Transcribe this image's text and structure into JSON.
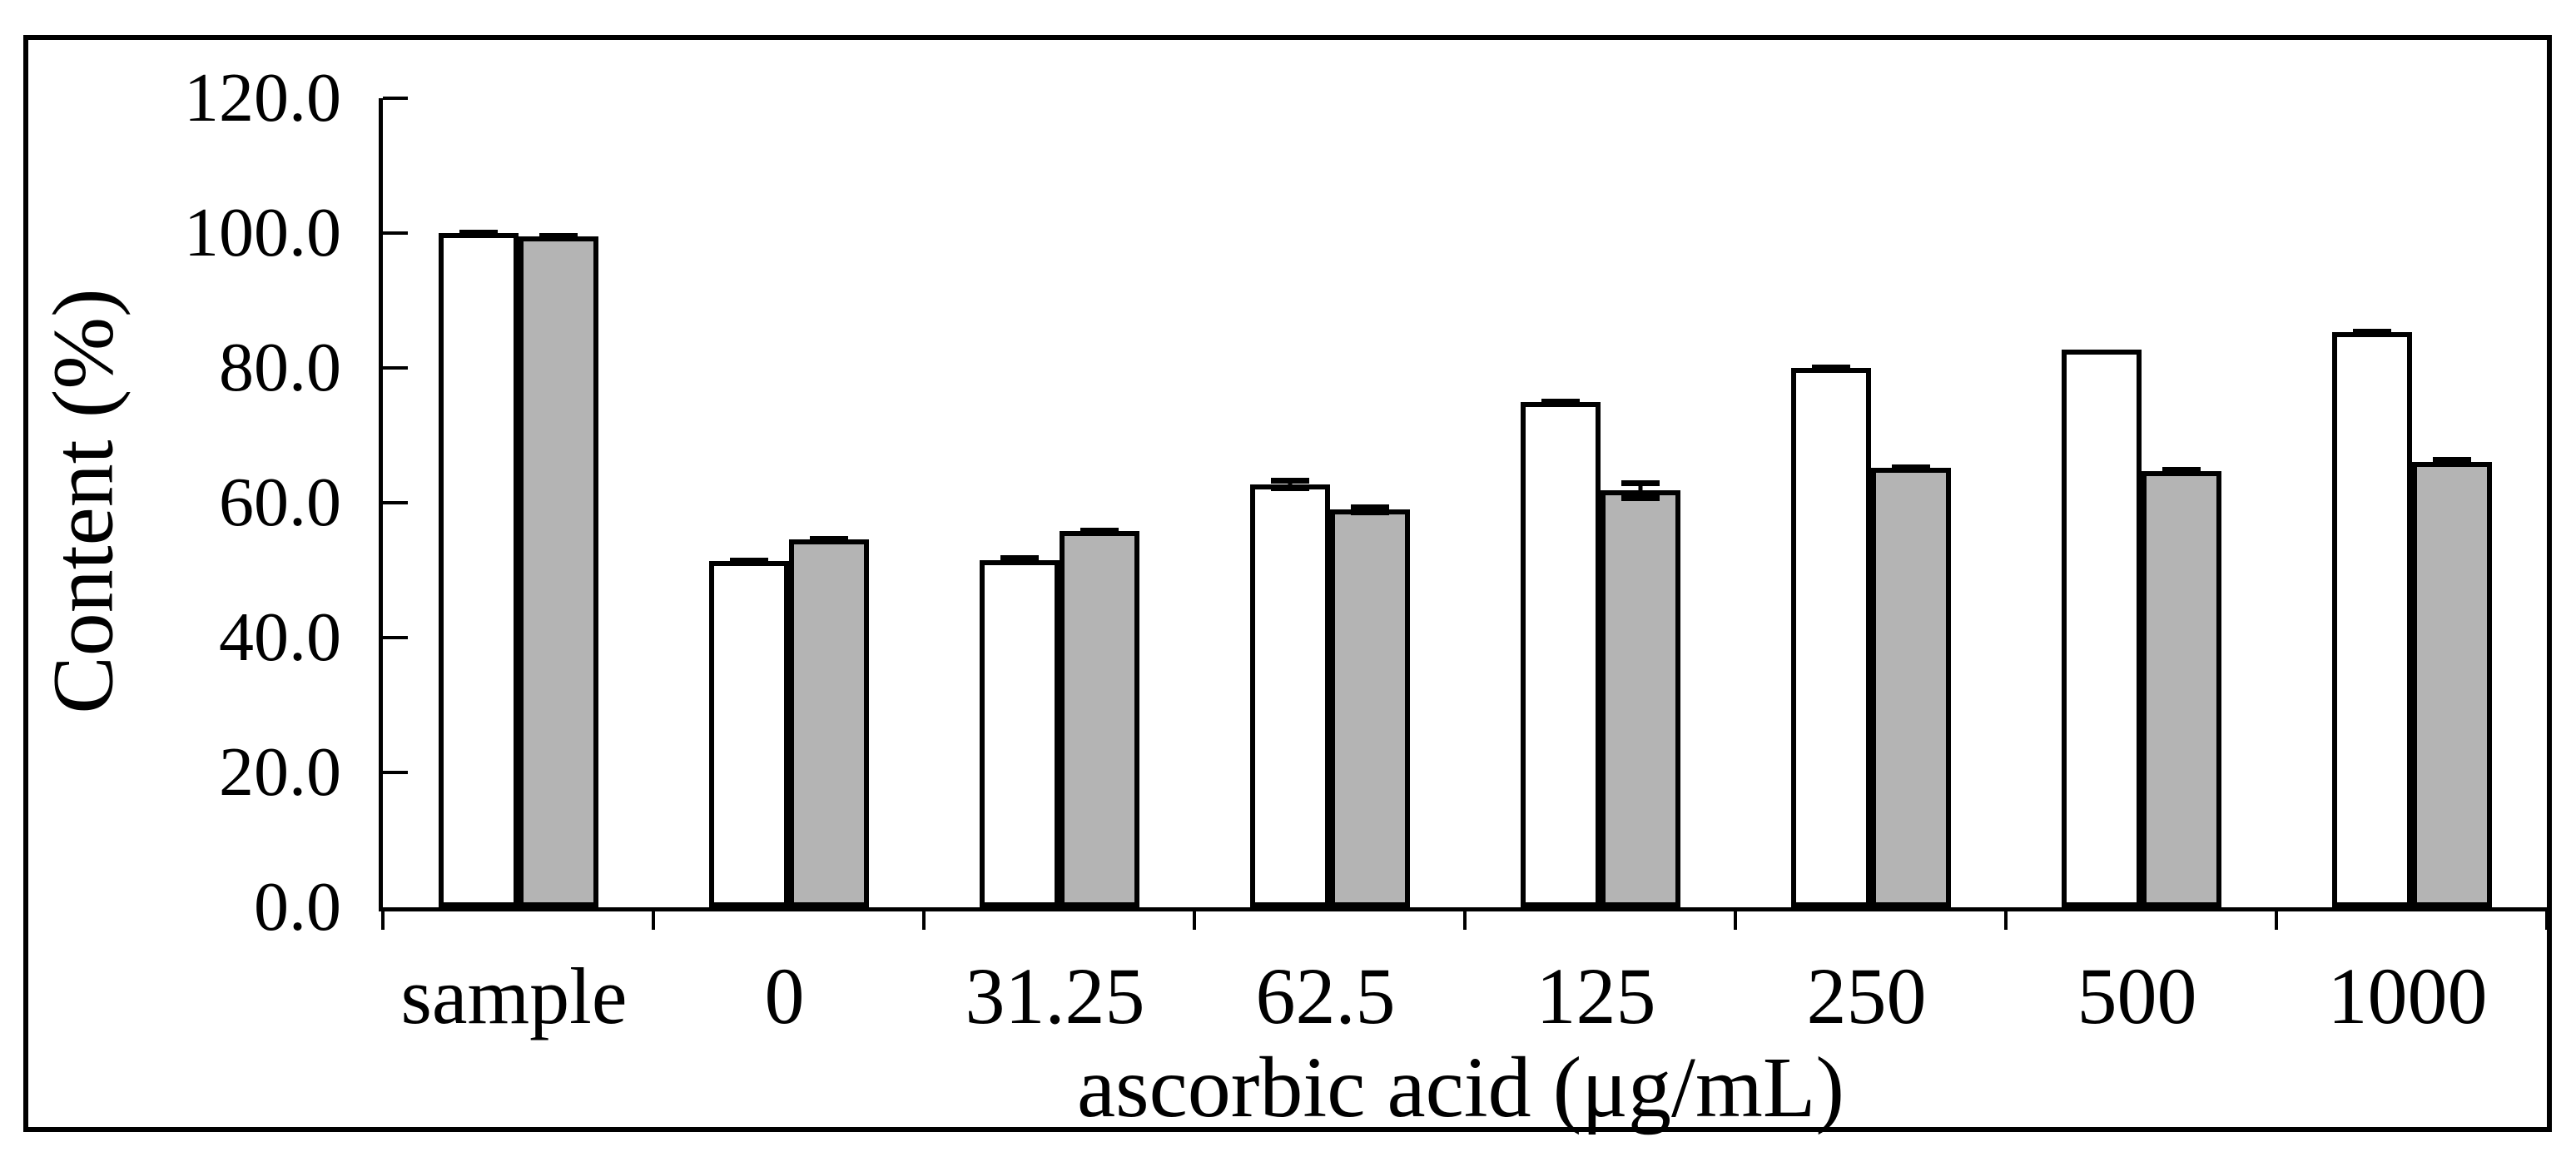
{
  "chart_data": {
    "type": "bar",
    "title": "",
    "categories": [
      "sample",
      "0",
      "31.25",
      "62.5",
      "125",
      "250",
      "500",
      "1000"
    ],
    "series": [
      {
        "name": "white-bars",
        "fill_color": "#ffffff",
        "values": [
          100.0,
          51.4,
          51.5,
          62.7,
          75.0,
          80.0,
          82.7,
          85.3
        ],
        "errors": [
          0.5,
          0.4,
          0.7,
          1.0,
          0.4,
          0.5,
          0,
          0.5
        ]
      },
      {
        "name": "gray-bars",
        "fill_color": "#b4b4b4",
        "values": [
          99.5,
          54.6,
          55.8,
          59.0,
          61.8,
          65.2,
          64.7,
          66.1
        ],
        "errors": [
          0.4,
          0.4,
          0.5,
          0.8,
          1.5,
          0.4,
          0.6,
          0.7
        ]
      }
    ],
    "xlabel": "ascorbic acid (μg/mL)",
    "ylabel": "Content (%)",
    "ylim": [
      0,
      120
    ],
    "ytick_step": 20,
    "ytick_labels": [
      "0.0",
      "20.0",
      "40.0",
      "60.0",
      "80.0",
      "100.0",
      "120.0"
    ],
    "grid": false,
    "legend": "none",
    "outline_color": "#000000"
  }
}
